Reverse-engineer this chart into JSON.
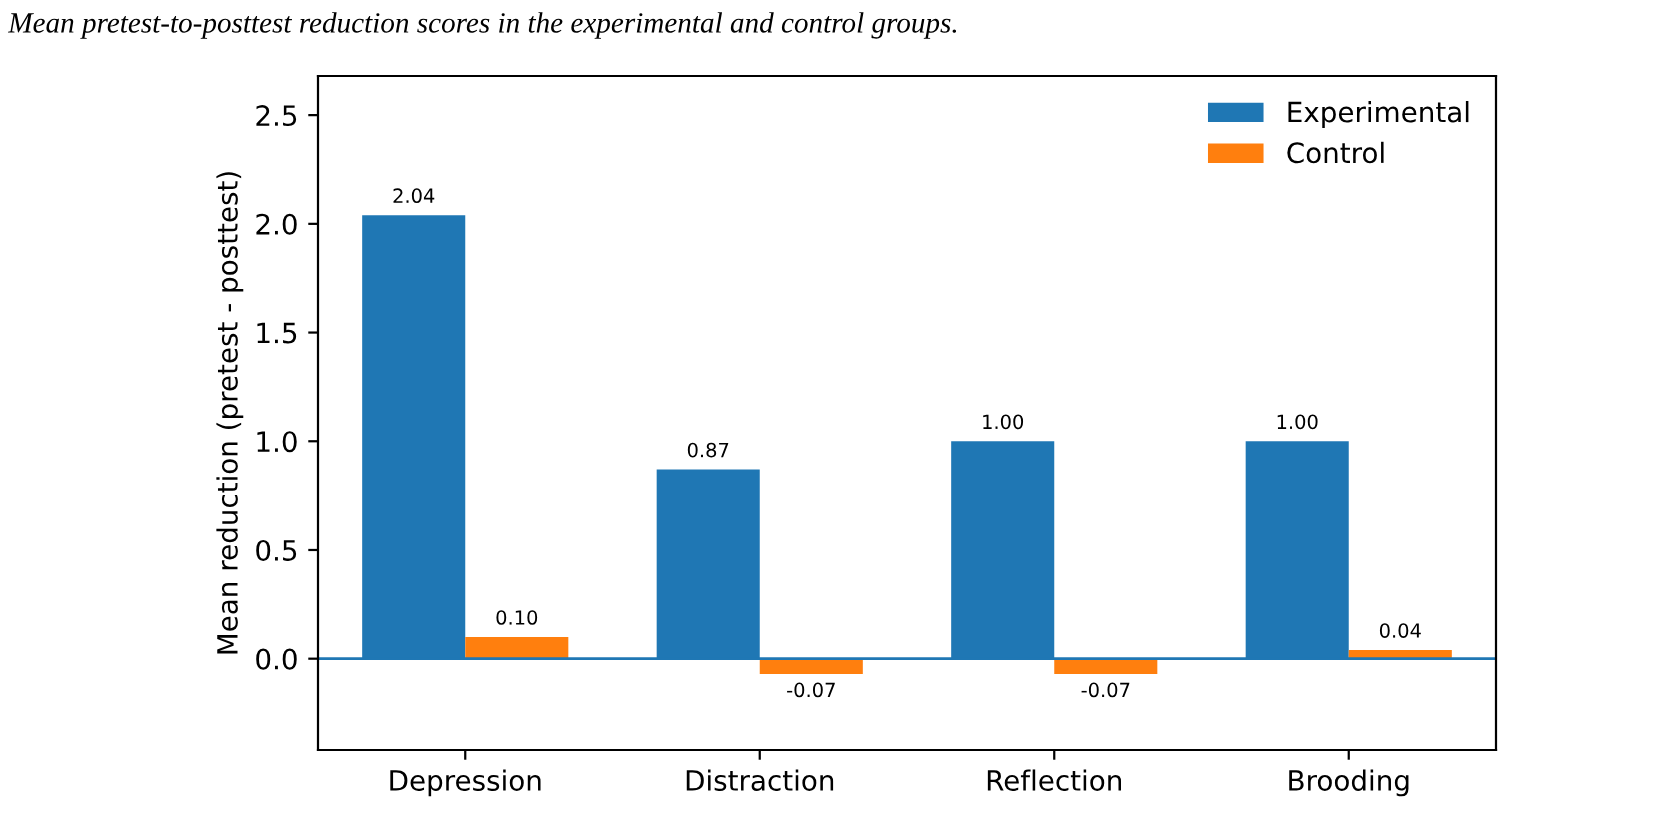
{
  "chart_data": {
    "type": "bar",
    "title": "Mean pretest-to-posttest reduction scores in the experimental and control groups.",
    "ylabel": "Mean reduction (pretest - posttest)",
    "categories": [
      "Depression",
      "Distraction",
      "Reflection",
      "Brooding"
    ],
    "series": [
      {
        "name": "Experimental",
        "color": "#1f77b4",
        "values": [
          2.04,
          0.87,
          1.0,
          1.0
        ],
        "value_labels": [
          "2.04",
          "0.87",
          "1.00",
          "1.00"
        ]
      },
      {
        "name": "Control",
        "color": "#ff7f0e",
        "values": [
          0.1,
          -0.07,
          -0.07,
          0.04
        ],
        "value_labels": [
          "0.10",
          "-0.07",
          "-0.07",
          "0.04"
        ]
      }
    ],
    "ylim": [
      -0.42,
      2.68
    ],
    "yticks": [
      {
        "value": 0,
        "label": "0.0"
      },
      0.5,
      {
        "value": 1,
        "label": "1.0"
      },
      1.5,
      {
        "value": 2,
        "label": "2.0"
      },
      2.5
    ],
    "ref_lines": [
      {
        "axis": "y",
        "value": 0,
        "color": "#1f77b4"
      }
    ],
    "grid": false,
    "legend": "top right"
  }
}
